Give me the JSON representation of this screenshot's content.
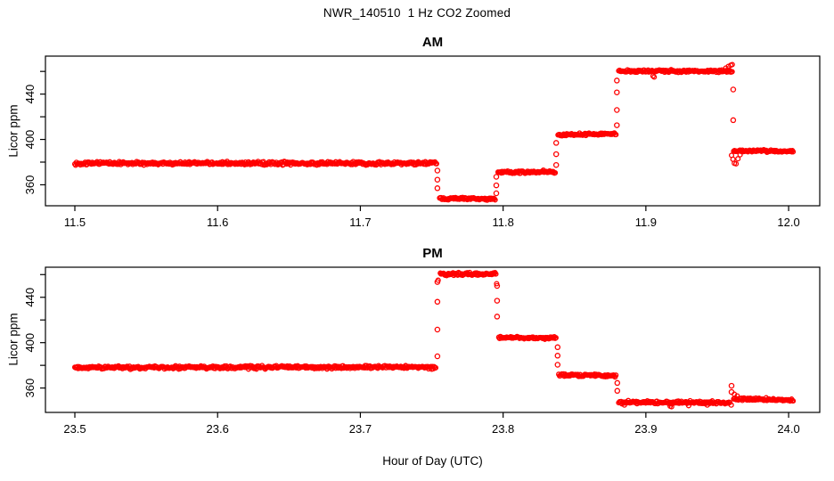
{
  "figure": {
    "title": "NWR_140510  1 Hz CO2 Zoomed",
    "xlabel": "Hour of Day (UTC)",
    "point_color": "#FF0000",
    "axis_color": "#000000",
    "background_color": "#FFFFFF"
  },
  "chart_data": [
    {
      "type": "scatter",
      "title": "AM",
      "ylabel": "Licor ppm",
      "marker": "open-circle",
      "sample_rate_hz": 1,
      "xlim": [
        11.4794,
        12.0218
      ],
      "ylim": [
        341.5,
        473.5
      ],
      "x_tick_values": [
        11.5,
        11.6,
        11.7,
        11.8,
        11.9,
        12.0
      ],
      "x_tick_labels": [
        "11.5",
        "11.6",
        "11.7",
        "11.8",
        "11.9",
        "12.0"
      ],
      "y_tick_values": [
        360,
        380,
        400,
        420,
        440,
        460
      ],
      "y_tick_labels": [
        "360",
        "",
        "400",
        "",
        "440",
        ""
      ],
      "grid": false,
      "segments": [
        {
          "t0": 11.5,
          "t1": 11.7535,
          "v": 379.0,
          "v_end": 379.0,
          "jitter": 1.3
        },
        {
          "t0": 11.7555,
          "t1": 11.7945,
          "v": 348.0,
          "v_end": 347.5,
          "jitter": 1.0
        },
        {
          "t0": 11.7965,
          "t1": 11.8365,
          "v": 371.0,
          "v_end": 371.5,
          "jitter": 1.0
        },
        {
          "t0": 11.8385,
          "t1": 11.879,
          "v": 404.0,
          "v_end": 405.0,
          "jitter": 1.0
        },
        {
          "t0": 11.881,
          "t1": 11.9605,
          "v": 460.5,
          "v_end": 460.0,
          "jitter": 1.2
        },
        {
          "t0": 11.9615,
          "t1": 12.003,
          "v": 390.0,
          "v_end": 389.5,
          "jitter": 1.0
        }
      ],
      "transitions": [
        {
          "t": 11.754,
          "values": [
            372.5,
            364.5,
            357.0
          ]
        },
        {
          "t": 11.7952,
          "values": [
            352.5,
            359.5,
            367.0
          ]
        },
        {
          "t": 11.8372,
          "values": [
            377.5,
            387.0,
            397.0
          ]
        },
        {
          "t": 11.8797,
          "values": [
            412.5,
            426.0,
            441.5,
            452.0
          ]
        },
        {
          "t": 11.9612,
          "values": [
            444.0,
            417.0
          ]
        }
      ],
      "extras": [
        {
          "t": 11.905,
          "v": 456.0
        },
        {
          "t": 11.9058,
          "v": 455.0
        },
        {
          "t": 11.956,
          "v": 463.0
        },
        {
          "t": 11.9578,
          "v": 464.5
        },
        {
          "t": 11.9595,
          "v": 465.5
        },
        {
          "t": 11.9605,
          "v": 466.0
        },
        {
          "t": 11.96,
          "v": 386.0
        },
        {
          "t": 11.961,
          "v": 382.5
        },
        {
          "t": 11.962,
          "v": 379.0
        },
        {
          "t": 11.9632,
          "v": 378.5
        },
        {
          "t": 11.9645,
          "v": 383.0
        },
        {
          "t": 11.966,
          "v": 386.5
        }
      ]
    },
    {
      "type": "scatter",
      "title": "PM",
      "ylabel": "Licor ppm",
      "marker": "open-circle",
      "sample_rate_hz": 1,
      "xlim": [
        23.4794,
        24.0218
      ],
      "ylim": [
        338.5,
        466.5
      ],
      "x_tick_values": [
        23.5,
        23.6,
        23.7,
        23.8,
        23.9,
        24.0
      ],
      "x_tick_labels": [
        "23.5",
        "23.6",
        "23.7",
        "23.8",
        "23.9",
        "24.0"
      ],
      "y_tick_values": [
        360,
        380,
        400,
        420,
        440,
        460
      ],
      "y_tick_labels": [
        "360",
        "",
        "400",
        "",
        "440",
        ""
      ],
      "grid": false,
      "segments": [
        {
          "t0": 23.5,
          "t1": 23.753,
          "v": 378.0,
          "v_end": 378.5,
          "jitter": 1.3
        },
        {
          "t0": 23.756,
          "t1": 23.795,
          "v": 460.5,
          "v_end": 460.5,
          "jitter": 1.1
        },
        {
          "t0": 23.797,
          "t1": 23.837,
          "v": 404.5,
          "v_end": 404.0,
          "jitter": 1.0
        },
        {
          "t0": 23.839,
          "t1": 23.879,
          "v": 371.5,
          "v_end": 371.0,
          "jitter": 1.0
        },
        {
          "t0": 23.881,
          "t1": 23.959,
          "v": 347.5,
          "v_end": 347.0,
          "jitter": 1.2
        },
        {
          "t0": 23.9615,
          "t1": 24.003,
          "v": 350.5,
          "v_end": 349.0,
          "jitter": 1.0
        }
      ],
      "transitions": [
        {
          "t": 23.754,
          "values": [
            388.0,
            411.5,
            436.0,
            453.5
          ]
        },
        {
          "t": 23.7958,
          "values": [
            450.0,
            437.0,
            423.0
          ]
        },
        {
          "t": 23.8382,
          "values": [
            396.0,
            388.5,
            380.5
          ]
        },
        {
          "t": 23.88,
          "values": [
            364.5,
            357.5
          ]
        },
        {
          "t": 23.96,
          "values": [
            362.0,
            356.5
          ]
        }
      ],
      "extras": [
        {
          "t": 23.7545,
          "v": 455.0
        },
        {
          "t": 23.7955,
          "v": 452.0
        },
        {
          "t": 23.885,
          "v": 345.0
        },
        {
          "t": 23.917,
          "v": 344.0
        },
        {
          "t": 23.918,
          "v": 343.5
        },
        {
          "t": 23.93,
          "v": 344.5
        },
        {
          "t": 23.943,
          "v": 345.0
        },
        {
          "t": 23.9598,
          "v": 345.0
        },
        {
          "t": 23.962,
          "v": 354.5
        },
        {
          "t": 23.964,
          "v": 353.0
        }
      ]
    }
  ]
}
